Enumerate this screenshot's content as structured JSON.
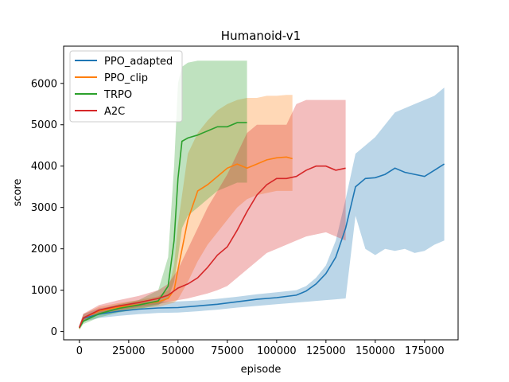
{
  "chart_data": {
    "type": "line",
    "title": "Humanoid-v1",
    "xlabel": "episode",
    "ylabel": "score",
    "xlim": [
      -8000,
      192000
    ],
    "ylim": [
      -200,
      6900
    ],
    "x_ticks": [
      0,
      25000,
      50000,
      75000,
      100000,
      125000,
      150000,
      175000
    ],
    "x_tick_labels": [
      "0",
      "25000",
      "50000",
      "75000",
      "100000",
      "125000",
      "150000",
      "175000"
    ],
    "y_ticks": [
      0,
      1000,
      2000,
      3000,
      4000,
      5000,
      6000
    ],
    "y_tick_labels": [
      "0",
      "1000",
      "2000",
      "3000",
      "4000",
      "5000",
      "6000"
    ],
    "grid": false,
    "legend_position": "upper-left",
    "series": [
      {
        "name": "PPO_adapted",
        "color": "#1f77b4",
        "x": [
          0,
          2000,
          10000,
          20000,
          30000,
          40000,
          50000,
          60000,
          70000,
          80000,
          90000,
          100000,
          110000,
          115000,
          120000,
          125000,
          130000,
          135000,
          140000,
          145000,
          150000,
          155000,
          160000,
          165000,
          170000,
          175000,
          180000,
          185000
        ],
        "mean": [
          100,
          320,
          420,
          490,
          540,
          570,
          580,
          620,
          660,
          720,
          780,
          820,
          880,
          980,
          1150,
          1400,
          1800,
          2500,
          3500,
          3700,
          3720,
          3800,
          3950,
          3850,
          3800,
          3750,
          3900,
          4050
        ],
        "upper": [
          150,
          420,
          560,
          640,
          690,
          720,
          730,
          750,
          790,
          840,
          900,
          950,
          1000,
          1100,
          1300,
          1600,
          2200,
          3200,
          4300,
          4500,
          4700,
          5000,
          5300,
          5400,
          5500,
          5600,
          5700,
          5900
        ],
        "lower": [
          60,
          240,
          330,
          380,
          420,
          450,
          460,
          490,
          530,
          580,
          620,
          660,
          700,
          720,
          740,
          760,
          780,
          800,
          2800,
          2000,
          1850,
          2000,
          1950,
          2000,
          1900,
          1950,
          2100,
          2200
        ]
      },
      {
        "name": "PPO_clip",
        "color": "#ff7f0e",
        "x": [
          0,
          2000,
          10000,
          20000,
          30000,
          40000,
          45000,
          48000,
          50000,
          55000,
          60000,
          65000,
          70000,
          75000,
          80000,
          85000,
          90000,
          95000,
          100000,
          105000,
          108000
        ],
        "mean": [
          80,
          330,
          500,
          590,
          650,
          720,
          800,
          1000,
          1500,
          2700,
          3400,
          3550,
          3750,
          3950,
          4050,
          3950,
          4050,
          4150,
          4200,
          4220,
          4180
        ],
        "upper": [
          150,
          420,
          600,
          690,
          760,
          850,
          1000,
          1600,
          2600,
          4300,
          4800,
          5100,
          5350,
          5500,
          5600,
          5650,
          5650,
          5700,
          5700,
          5720,
          5720
        ],
        "lower": [
          50,
          250,
          420,
          500,
          560,
          600,
          660,
          700,
          780,
          1200,
          1700,
          2100,
          2400,
          2700,
          3000,
          3200,
          3300,
          3350,
          3400,
          3400,
          3400
        ]
      },
      {
        "name": "TRPO",
        "color": "#2ca02c",
        "x": [
          0,
          2000,
          10000,
          20000,
          30000,
          40000,
          45000,
          48000,
          50000,
          52000,
          55000,
          60000,
          65000,
          70000,
          75000,
          80000,
          85000
        ],
        "mean": [
          90,
          250,
          430,
          560,
          640,
          740,
          1100,
          2200,
          3700,
          4600,
          4680,
          4750,
          4850,
          4950,
          4950,
          5050,
          5050
        ],
        "upper": [
          150,
          350,
          530,
          660,
          760,
          1000,
          1800,
          4000,
          6000,
          6400,
          6500,
          6550,
          6550,
          6550,
          6550,
          6550,
          6550
        ],
        "lower": [
          40,
          180,
          340,
          460,
          540,
          640,
          800,
          1200,
          1800,
          2500,
          2800,
          3000,
          3200,
          3400,
          3500,
          3600,
          3600
        ]
      },
      {
        "name": "A2C",
        "color": "#d62728",
        "x": [
          0,
          2000,
          10000,
          20000,
          30000,
          40000,
          45000,
          50000,
          55000,
          60000,
          65000,
          70000,
          75000,
          80000,
          85000,
          90000,
          95000,
          100000,
          105000,
          110000,
          115000,
          120000,
          125000,
          130000,
          135000
        ],
        "mean": [
          100,
          330,
          520,
          620,
          700,
          800,
          880,
          1050,
          1150,
          1300,
          1550,
          1850,
          2050,
          2450,
          2900,
          3300,
          3550,
          3700,
          3700,
          3750,
          3900,
          4000,
          4000,
          3900,
          3950
        ],
        "upper": [
          150,
          430,
          640,
          760,
          860,
          1000,
          1150,
          1500,
          2000,
          2500,
          3000,
          3400,
          3800,
          4300,
          4800,
          5000,
          5000,
          5000,
          5000,
          5500,
          5600,
          5600,
          5600,
          5600,
          5600
        ],
        "lower": [
          60,
          260,
          430,
          520,
          590,
          660,
          720,
          760,
          800,
          860,
          920,
          1000,
          1100,
          1300,
          1500,
          1700,
          1900,
          2000,
          2100,
          2200,
          2300,
          2350,
          2400,
          2300,
          2200
        ]
      }
    ]
  }
}
